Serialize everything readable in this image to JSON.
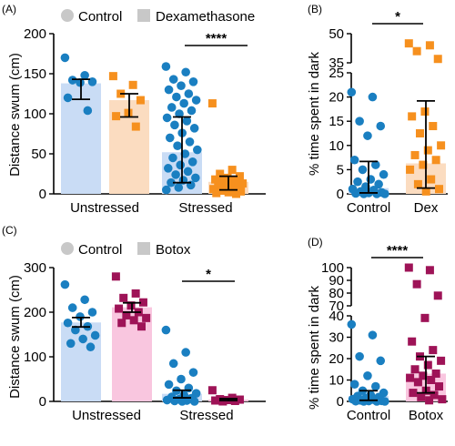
{
  "colors": {
    "control_bar": "#c9dcf5",
    "control_point": "#1a7fc1",
    "dex_bar": "#fbdcc0",
    "dex_point": "#f6901e",
    "botox_bar": "#f9c6df",
    "botox_point": "#9e1357",
    "legend_marker": "#c8c8c8"
  },
  "chart_data": [
    {
      "panel": "(A)",
      "type": "bar",
      "legend": [
        "Control",
        "Dexamethasone"
      ],
      "ylabel": "Distance swum (cm)",
      "ylim": [
        0,
        200
      ],
      "yticks": [
        0,
        50,
        100,
        150,
        200
      ],
      "categories": [
        "Unstressed",
        "Stressed"
      ],
      "series": [
        {
          "name": "Control",
          "values": [
            138,
            52
          ],
          "error": [
            [
              118,
              143
            ],
            [
              14,
              96
            ]
          ],
          "points": [
            [
              170,
              148,
              142,
              140,
              139,
              120,
              104
            ],
            [
              159,
              152,
              143,
              140,
              135,
              130,
              125,
              121,
              117,
              113,
              108,
              104,
              100,
              95,
              91,
              86,
              82,
              76,
              70,
              65,
              60,
              55,
              50,
              45,
              40,
              36,
              32,
              28,
              24,
              20,
              17,
              14,
              11,
              8,
              5
            ]
          ]
        },
        {
          "name": "Dexamethasone",
          "values": [
            117,
            15
          ],
          "error": [
            [
              96,
              125
            ],
            [
              5,
              22
            ]
          ],
          "points": [
            [
              147,
              136,
              125,
              117,
              101,
              97,
              84
            ],
            [
              113,
              30,
              25,
              22,
              20,
              18,
              16,
              15,
              13,
              12,
              10,
              9,
              8,
              6,
              5,
              4,
              3,
              2,
              1,
              0
            ]
          ]
        }
      ],
      "significance": [
        {
          "between": "Stressed",
          "label": "****"
        }
      ]
    },
    {
      "panel": "(B)",
      "type": "bar",
      "ylabel": "% time spent in dark",
      "yticks": [
        0,
        5,
        10,
        15,
        20,
        25,
        35,
        50
      ],
      "axis_break": [
        25,
        35
      ],
      "categories": [
        "Control",
        "Dex"
      ],
      "values": [
        1.2,
        6.3
      ],
      "error": [
        [
          0.2,
          6.7
        ],
        [
          1.2,
          19.2
        ]
      ],
      "points": [
        [
          21,
          20,
          15,
          14,
          12,
          7,
          6,
          5,
          4,
          3,
          2.5,
          2,
          1.5,
          1,
          0.8,
          0.5,
          0.3,
          0.2,
          0.1,
          0,
          0,
          0
        ],
        [
          45,
          44,
          41,
          37,
          17,
          16,
          14,
          12.5,
          10,
          9,
          8,
          7,
          6,
          5,
          3,
          2,
          1,
          0.5
        ]
      ],
      "significance": [
        {
          "between": "Control-Dex",
          "label": "*"
        }
      ]
    },
    {
      "panel": "(C)",
      "type": "bar",
      "legend": [
        "Control",
        "Botox"
      ],
      "ylabel": "Distance swum (cm)",
      "ylim": [
        0,
        300
      ],
      "yticks": [
        0,
        100,
        200,
        300
      ],
      "categories": [
        "Unstressed",
        "Stressed"
      ],
      "series": [
        {
          "name": "Control",
          "values": [
            177,
            17
          ],
          "error": [
            [
              167,
              188
            ],
            [
              8,
              25
            ]
          ],
          "points": [
            [
              262,
              228,
              210,
              200,
              190,
              176,
              168,
              160,
              148,
              140,
              130,
              122
            ],
            [
              160,
              110,
              85,
              65,
              50,
              38,
              30,
              24,
              18,
              14,
              10,
              7,
              5,
              3,
              2,
              1,
              0,
              0
            ]
          ]
        },
        {
          "name": "Botox",
          "values": [
            211,
            4
          ],
          "error": [
            [
              200,
              221
            ],
            [
              2,
              6
            ]
          ],
          "points": [
            [
              280,
              242,
              232,
              222,
              215,
              208,
              200,
              193,
              187,
              182,
              176,
              168
            ],
            [
              25,
              8,
              5,
              4,
              3,
              2,
              1,
              0
            ]
          ]
        }
      ],
      "significance": [
        {
          "between": "Stressed",
          "label": "*"
        }
      ]
    },
    {
      "panel": "(D)",
      "type": "bar",
      "ylabel": "% time spent in dark",
      "yticks": [
        0,
        10,
        20,
        30,
        40,
        70,
        80,
        90,
        100
      ],
      "axis_break": [
        40,
        70
      ],
      "categories": [
        "Control",
        "Botox"
      ],
      "values": [
        2.5,
        13
      ],
      "error": [
        [
          0.5,
          5
        ],
        [
          4,
          21
        ]
      ],
      "points": [
        [
          36,
          31,
          21,
          19,
          12,
          8,
          7,
          5,
          4,
          3,
          2.5,
          2,
          1.5,
          1,
          0.8,
          0.5,
          0.3,
          0.2,
          0.1,
          0,
          0,
          0
        ],
        [
          100,
          98,
          87,
          78,
          39,
          28,
          24,
          21,
          19,
          17,
          15,
          13,
          12,
          11,
          10,
          9,
          7,
          5,
          4,
          3,
          2,
          1,
          0.5
        ]
      ],
      "significance": [
        {
          "between": "Control-Botox",
          "label": "****"
        }
      ]
    }
  ]
}
